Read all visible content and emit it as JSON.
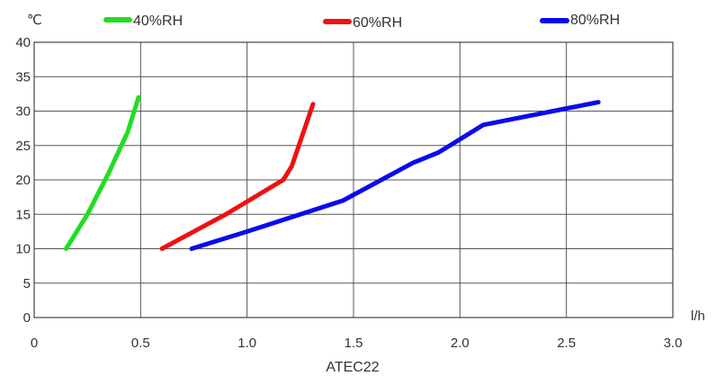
{
  "chart_data": {
    "type": "line",
    "title": "ATEC22",
    "xlabel": "l/h",
    "ylabel": "℃",
    "xlim": [
      0,
      3.0
    ],
    "ylim": [
      0,
      40
    ],
    "xticks": [
      "0",
      "0.5",
      "1.0",
      "1.5",
      "2.0",
      "2.5",
      "3.0"
    ],
    "yticks": [
      "0",
      "5",
      "10",
      "15",
      "20",
      "25",
      "30",
      "35",
      "40"
    ],
    "grid": true,
    "legend_position": "top",
    "series": [
      {
        "name": "40%RH",
        "color": "#22dd22",
        "points": [
          [
            0.15,
            10
          ],
          [
            0.25,
            15
          ],
          [
            0.35,
            21
          ],
          [
            0.44,
            27
          ],
          [
            0.49,
            32
          ]
        ]
      },
      {
        "name": "60%RH",
        "color": "#ee1111",
        "points": [
          [
            0.6,
            10
          ],
          [
            0.9,
            15
          ],
          [
            1.17,
            20
          ],
          [
            1.21,
            22
          ],
          [
            1.31,
            31
          ]
        ]
      },
      {
        "name": "80%RH",
        "color": "#0a0aee",
        "points": [
          [
            0.74,
            10
          ],
          [
            1.0,
            12.5
          ],
          [
            1.45,
            17
          ],
          [
            1.78,
            22.5
          ],
          [
            1.9,
            24
          ],
          [
            2.11,
            28
          ],
          [
            2.65,
            31.3
          ]
        ]
      }
    ]
  }
}
